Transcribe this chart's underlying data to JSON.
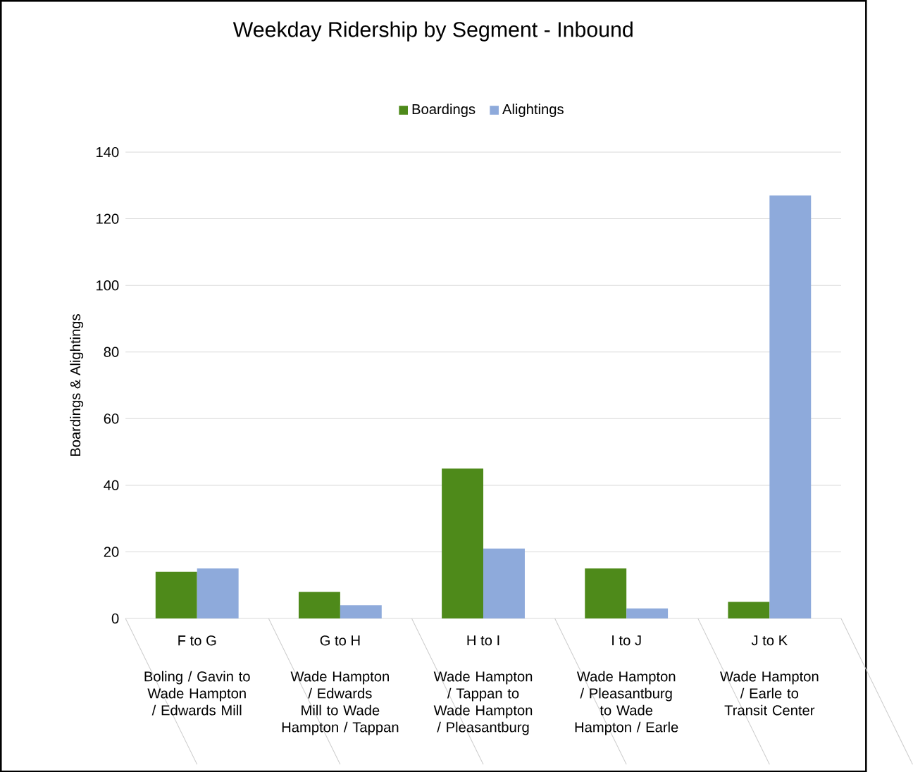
{
  "chart_data": {
    "type": "bar",
    "title": "Weekday Ridership by Segment - Inbound",
    "ylabel": "Boardings & Alightings",
    "categories": [
      "F to G",
      "G to H",
      "H to I",
      "I to J",
      "J to K"
    ],
    "series": [
      {
        "name": "Boardings",
        "color": "#4e8a1a",
        "values": [
          14,
          8,
          45,
          15,
          5
        ]
      },
      {
        "name": "Alightings",
        "color": "#8eaadb",
        "values": [
          15,
          4,
          21,
          3,
          127
        ]
      }
    ],
    "annotations": [
      "Boling / Gavin to Wade Hampton / Edwards Mill",
      "Wade Hampton / Edwards Mill to Wade Hampton / Tappan",
      "Wade Hampton / Tappan to Wade Hampton / Pleasantburg",
      "Wade Hampton / Pleasantburg to Wade Hampton / Earle",
      "Wade Hampton / Earle to Transit Center"
    ],
    "ylim": [
      0,
      140
    ],
    "yticks": [
      0,
      20,
      40,
      60,
      80,
      100,
      120,
      140
    ],
    "grid": "y",
    "legend": "top"
  }
}
